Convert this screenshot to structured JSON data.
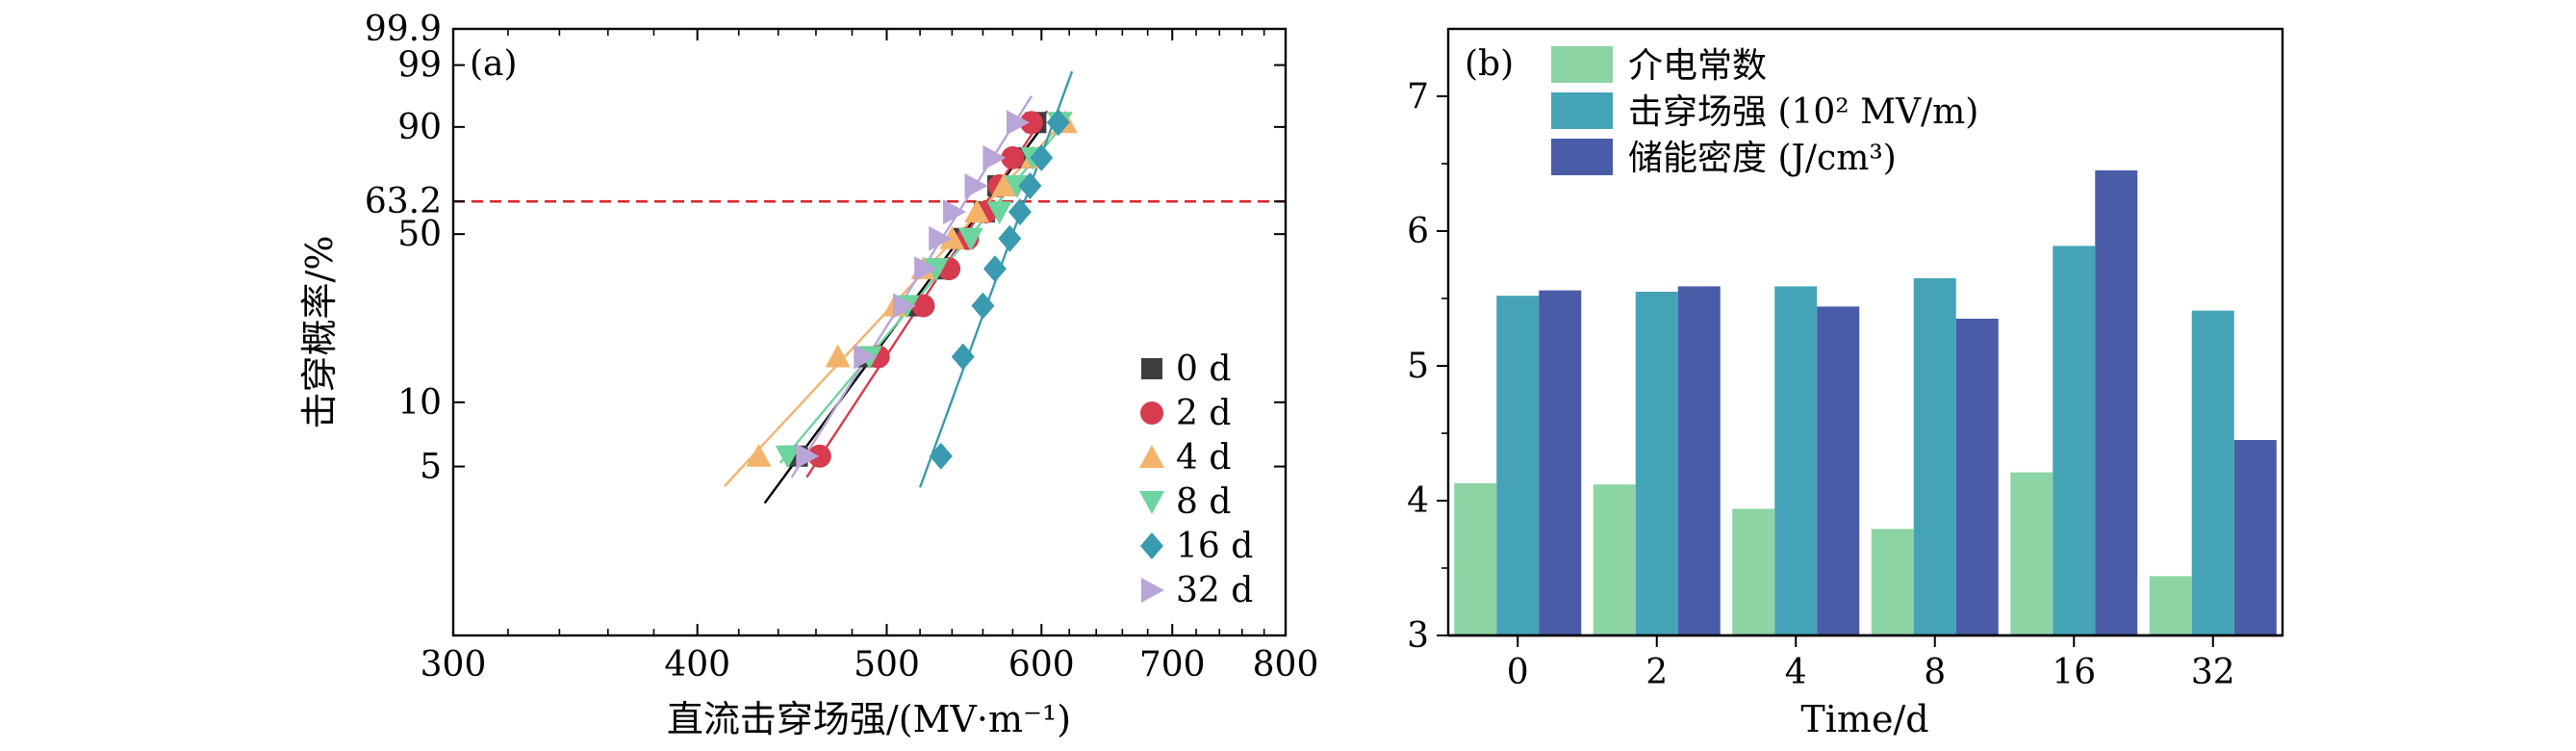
{
  "chart_data": [
    {
      "type": "scatter",
      "panel_label": "(a)",
      "xlabel": "直流击穿场强/(MV·m⁻¹)",
      "ylabel": "击穿概率/%",
      "x_scale": "log",
      "y_scale": "weibull",
      "xlim": [
        300,
        800
      ],
      "ylim": [
        0.77,
        99.9
      ],
      "x_ticks": [
        300,
        400,
        500,
        600,
        700,
        800
      ],
      "y_ticks": [
        5,
        10,
        50,
        63.2,
        90,
        99,
        99.9
      ],
      "y_tick_labels": [
        "5",
        "10",
        "50",
        "63.2",
        "90",
        "99",
        "99.9"
      ],
      "reference_line": {
        "y": 63.2,
        "color": "#d9262b",
        "style": "dashed"
      },
      "legend_position": "lower-right",
      "series": [
        {
          "name": "0 d",
          "color": "#3d3d3d",
          "marker": "square",
          "x": [
            450,
            488,
            518,
            533,
            547,
            561,
            570,
            585,
            596
          ],
          "y": [
            5.6,
            16.1,
            26.7,
            37.5,
            48.3,
            58.9,
            69.6,
            80.4,
            91.1
          ],
          "fit": {
            "x1": 433,
            "x2": 600
          }
        },
        {
          "name": "2 d",
          "color": "#d63b4f",
          "marker": "circle",
          "x": [
            462,
            495,
            522,
            538,
            550,
            562,
            571,
            580,
            593
          ],
          "y": [
            5.6,
            16.1,
            26.7,
            37.5,
            48.3,
            58.9,
            69.6,
            80.4,
            91.1
          ],
          "fit": {
            "x1": 455,
            "x2": 604
          }
        },
        {
          "name": "4 d",
          "color": "#f4b36b",
          "marker": "triangle-up",
          "x": [
            430,
            472,
            505,
            522,
            540,
            556,
            574,
            594,
            617
          ],
          "y": [
            5.6,
            16.1,
            26.7,
            37.5,
            48.3,
            58.9,
            69.6,
            80.4,
            91.1
          ],
          "fit": {
            "x1": 413,
            "x2": 622
          }
        },
        {
          "name": "8 d",
          "color": "#6cd49e",
          "marker": "triangle-down",
          "x": [
            445,
            490,
            512,
            530,
            552,
            571,
            583,
            594,
            613
          ],
          "y": [
            5.6,
            16.1,
            26.7,
            37.5,
            48.3,
            58.9,
            69.6,
            80.4,
            91.1
          ],
          "fit": {
            "x1": 441,
            "x2": 618
          }
        },
        {
          "name": "16 d",
          "color": "#3a9aaf",
          "marker": "diamond",
          "x": [
            533,
            547,
            560,
            568,
            578,
            585,
            592,
            600,
            612
          ],
          "y": [
            5.6,
            16.1,
            26.7,
            37.5,
            48.3,
            58.9,
            69.6,
            80.4,
            91.1
          ],
          "fit": {
            "x1": 520,
            "x2": 622
          }
        },
        {
          "name": "32 d",
          "color": "#b9a5d7",
          "marker": "triangle-right",
          "x": [
            455,
            487,
            510,
            523,
            532,
            541,
            555,
            567,
            583
          ],
          "y": [
            5.6,
            16.1,
            26.7,
            37.5,
            48.3,
            58.9,
            69.6,
            80.4,
            91.1
          ],
          "fit": {
            "x1": 447,
            "x2": 593
          }
        }
      ]
    },
    {
      "type": "bar",
      "panel_label": "(b)",
      "xlabel": "Time/d",
      "ylabel": "",
      "categories": [
        "0",
        "2",
        "4",
        "8",
        "16",
        "32"
      ],
      "ylim": [
        3,
        7.5
      ],
      "y_ticks": [
        3,
        4,
        5,
        6,
        7
      ],
      "legend_position": "top-left",
      "series": [
        {
          "name": "介电常数",
          "color": "#8dd4a5",
          "values": [
            4.13,
            4.12,
            3.94,
            3.79,
            4.21,
            3.44
          ]
        },
        {
          "name": "击穿场强 (10² MV/m)",
          "color": "#45a3b8",
          "values": [
            5.52,
            5.55,
            5.59,
            5.65,
            5.89,
            5.41
          ]
        },
        {
          "name": "储能密度 (J/cm³)",
          "color": "#4a5ba8",
          "values": [
            5.56,
            5.59,
            5.44,
            5.35,
            6.45,
            4.45
          ]
        }
      ]
    }
  ]
}
